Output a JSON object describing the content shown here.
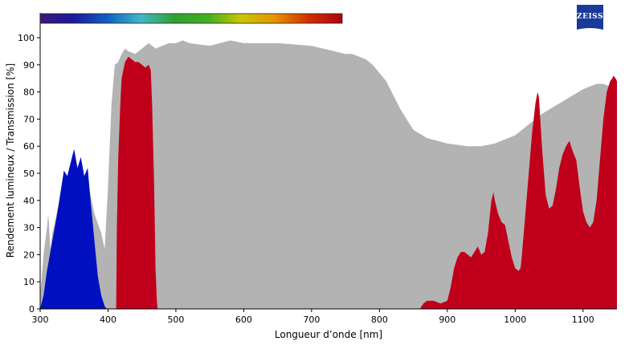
{
  "chart_data": {
    "type": "area",
    "title": "",
    "xlabel": "Longueur d’onde [nm]",
    "ylabel": "Rendement lumineux / Transmission [%]",
    "xlim": [
      300,
      1150
    ],
    "ylim": [
      0,
      105
    ],
    "x_ticks": [
      300,
      400,
      500,
      600,
      700,
      800,
      900,
      1000,
      1100
    ],
    "y_ticks": [
      0,
      10,
      20,
      30,
      40,
      50,
      60,
      70,
      80,
      90,
      100
    ],
    "grid": false,
    "legend": "none",
    "colors": {
      "transmission": "#b3b3b3",
      "blue": "#0010c0",
      "red": "#c0001a"
    },
    "spectrum_bar": {
      "range": [
        300,
        745
      ],
      "stops": [
        "#3a1a7a",
        "#1a1a9a",
        "#1060c0",
        "#40b8c8",
        "#30a030",
        "#40b020",
        "#c8c800",
        "#e89000",
        "#d03000",
        "#b00010"
      ]
    },
    "logo": {
      "text": "ZEISS",
      "color": "#1a3a9a"
    },
    "series": [
      {
        "key": "transmission",
        "x": [
          300,
          305,
          310,
          312,
          315,
          318,
          320,
          325,
          330,
          340,
          350,
          360,
          370,
          380,
          390,
          395,
          400,
          405,
          410,
          415,
          420,
          425,
          430,
          440,
          450,
          460,
          470,
          480,
          490,
          500,
          510,
          520,
          550,
          580,
          600,
          650,
          700,
          750,
          760,
          770,
          780,
          790,
          800,
          810,
          820,
          830,
          850,
          870,
          900,
          930,
          950,
          970,
          990,
          1000,
          1020,
          1040,
          1060,
          1080,
          1100,
          1110,
          1120,
          1130,
          1140,
          1150
        ],
        "y": [
          5,
          20,
          30,
          35,
          22,
          28,
          30,
          36,
          42,
          47,
          50,
          51,
          47,
          35,
          28,
          22,
          45,
          75,
          90,
          91,
          94,
          96,
          95,
          94,
          96,
          98,
          96,
          97,
          98,
          98,
          99,
          98,
          97,
          99,
          98,
          98,
          97,
          94,
          94,
          93,
          92,
          90,
          87,
          84,
          79,
          74,
          66,
          63,
          61,
          60,
          60,
          61,
          63,
          64,
          68,
          72,
          75,
          78,
          81,
          82,
          83,
          83,
          82,
          82
        ]
      },
      {
        "key": "blue",
        "x": [
          300,
          305,
          310,
          315,
          320,
          325,
          330,
          335,
          340,
          345,
          350,
          355,
          360,
          365,
          370,
          375,
          380,
          385,
          390,
          395,
          398
        ],
        "y": [
          0,
          5,
          14,
          21,
          28,
          35,
          43,
          51,
          49,
          54,
          59,
          52,
          56,
          49,
          52,
          38,
          25,
          12,
          5,
          1,
          0
        ]
      },
      {
        "key": "red",
        "x": [
          412,
          413,
          415,
          418,
          420,
          425,
          430,
          435,
          440,
          445,
          450,
          455,
          460,
          463,
          465,
          468,
          470,
          472,
          473,
          860,
          862,
          865,
          870,
          880,
          890,
          900,
          905,
          910,
          915,
          920,
          925,
          930,
          935,
          940,
          945,
          950,
          955,
          960,
          965,
          968,
          970,
          975,
          980,
          985,
          990,
          995,
          1000,
          1005,
          1008,
          1010,
          1015,
          1020,
          1025,
          1030,
          1033,
          1035,
          1040,
          1045,
          1050,
          1055,
          1060,
          1065,
          1070,
          1075,
          1080,
          1085,
          1090,
          1095,
          1100,
          1105,
          1110,
          1115,
          1120,
          1125,
          1130,
          1135,
          1140,
          1143,
          1145,
          1148,
          1150
        ],
        "y": [
          0,
          30,
          55,
          75,
          85,
          91,
          93,
          92,
          91,
          91,
          90,
          89,
          90,
          88,
          75,
          45,
          15,
          3,
          0,
          0,
          1,
          2,
          3,
          3,
          2,
          3,
          8,
          15,
          19,
          21,
          21,
          20,
          19,
          21,
          23,
          20,
          21,
          28,
          40,
          43,
          40,
          35,
          32,
          31,
          25,
          19,
          15,
          14,
          15,
          20,
          35,
          50,
          65,
          76,
          80,
          78,
          58,
          42,
          37,
          38,
          44,
          52,
          57,
          60,
          62,
          58,
          55,
          45,
          36,
          32,
          30,
          32,
          40,
          55,
          70,
          80,
          84,
          85,
          86,
          85,
          84
        ]
      }
    ]
  }
}
